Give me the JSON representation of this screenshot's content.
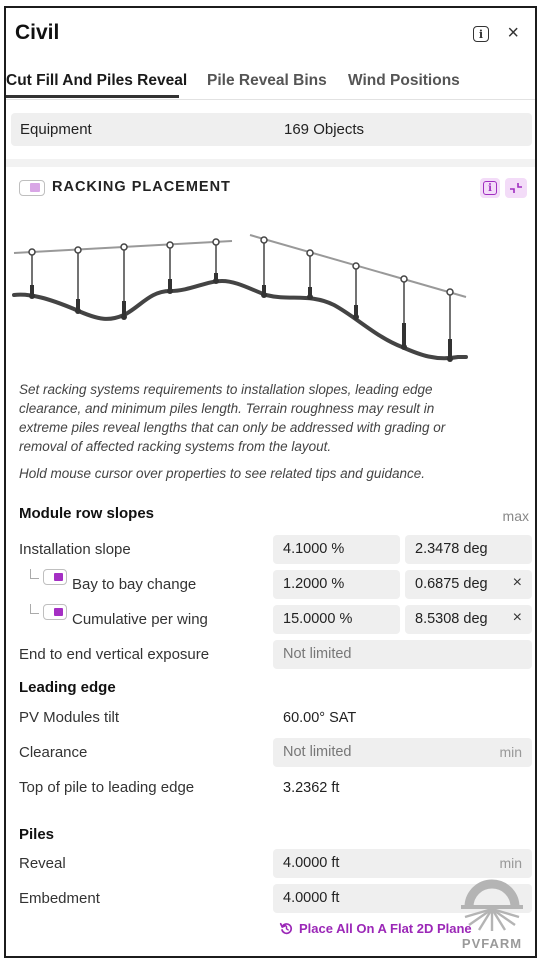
{
  "window": {
    "title": "Civil",
    "info_icon": "info-icon",
    "close_icon": "close-icon",
    "close_glyph": "×"
  },
  "tabs": [
    {
      "label": "Cut Fill And Piles Reveal",
      "active": true
    },
    {
      "label": "Pile Reveal Bins",
      "active": false
    },
    {
      "label": "Wind Positions",
      "active": false
    }
  ],
  "equipment": {
    "label": "Equipment",
    "value": "169 Objects"
  },
  "section": {
    "title": "RACKING PLACEMENT",
    "toggle_on": true,
    "info_icon": "info-icon",
    "collapse_icon": "collapse-icon",
    "description": "Set racking systems requirements to installation slopes, leading edge clearance, and minimum piles length. Terrain roughness may result in extreme piles reveal lengths that can only be addressed with grading or removal of affected racking systems from the layout.",
    "hint": "Hold mouse cursor over properties to see related tips and guidance."
  },
  "module_row_slopes": {
    "heading": "Module row slopes",
    "max_label": "max",
    "installation_slope": {
      "label": "Installation slope",
      "percent": "4.1000 %",
      "degrees": "2.3478 deg"
    },
    "bay_to_bay": {
      "label": "Bay to bay change",
      "percent": "1.2000 %",
      "degrees": "0.6875 deg",
      "enabled": true
    },
    "cumulative": {
      "label": "Cumulative per wing",
      "percent": "15.0000 %",
      "degrees": "8.5308 deg",
      "enabled": true
    },
    "end_to_end": {
      "label": "End to end vertical exposure",
      "value": "Not limited"
    },
    "clear_glyph": "×"
  },
  "leading_edge": {
    "heading": "Leading edge",
    "pv_tilt": {
      "label": "PV Modules tilt",
      "value": "60.00° SAT"
    },
    "clearance": {
      "label": "Clearance",
      "value": "Not limited",
      "suffix": "min"
    },
    "top_of_pile": {
      "label": "Top of pile to leading edge",
      "value": "3.2362 ft"
    }
  },
  "piles": {
    "heading": "Piles",
    "reveal": {
      "label": "Reveal",
      "value": "4.0000 ft",
      "suffix": "min"
    },
    "embedment": {
      "label": "Embedment",
      "value": "4.0000 ft"
    }
  },
  "flat_plane_link": {
    "label": "Place All On A Flat 2D Plane",
    "icon": "reset-icon"
  },
  "logo": {
    "text": "PVFARM"
  },
  "colors": {
    "accent": "#a52fc4",
    "accent_light": "#f3dcf8",
    "field_bg": "#efefef"
  }
}
